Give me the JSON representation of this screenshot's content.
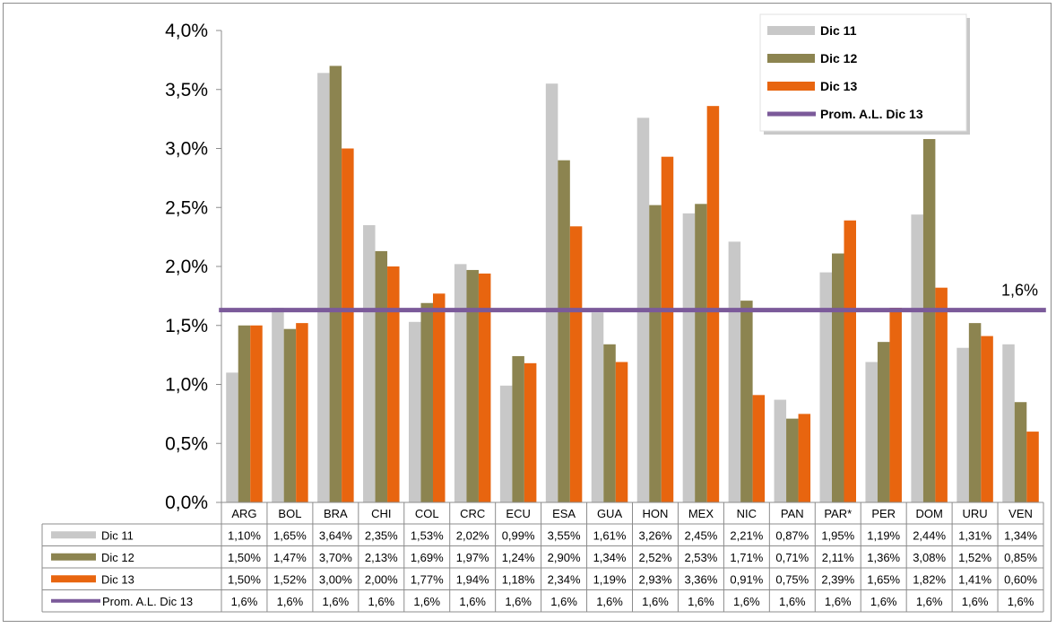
{
  "chart_data": {
    "type": "bar",
    "categories": [
      "ARG",
      "BOL",
      "BRA",
      "CHI",
      "COL",
      "CRC",
      "ECU",
      "ESA",
      "GUA",
      "HON",
      "MEX",
      "NIC",
      "PAN",
      "PAR*",
      "PER",
      "DOM",
      "URU",
      "VEN"
    ],
    "series": [
      {
        "name": "Dic 11",
        "color": "#c8c8c8",
        "values": [
          1.1,
          1.65,
          3.64,
          2.35,
          1.53,
          2.02,
          0.99,
          3.55,
          1.61,
          3.26,
          2.45,
          2.21,
          0.87,
          1.95,
          1.19,
          2.44,
          1.31,
          1.34
        ],
        "labels": [
          "1,10%",
          "1,65%",
          "3,64%",
          "2,35%",
          "1,53%",
          "2,02%",
          "0,99%",
          "3,55%",
          "1,61%",
          "3,26%",
          "2,45%",
          "2,21%",
          "0,87%",
          "1,95%",
          "1,19%",
          "2,44%",
          "1,31%",
          "1,34%"
        ]
      },
      {
        "name": "Dic 12",
        "color": "#8c8450",
        "values": [
          1.5,
          1.47,
          3.7,
          2.13,
          1.69,
          1.97,
          1.24,
          2.9,
          1.34,
          2.52,
          2.53,
          1.71,
          0.71,
          2.11,
          1.36,
          3.08,
          1.52,
          0.85
        ],
        "labels": [
          "1,50%",
          "1,47%",
          "3,70%",
          "2,13%",
          "1,69%",
          "1,97%",
          "1,24%",
          "2,90%",
          "1,34%",
          "2,52%",
          "2,53%",
          "1,71%",
          "0,71%",
          "2,11%",
          "1,36%",
          "3,08%",
          "1,52%",
          "0,85%"
        ]
      },
      {
        "name": "Dic 13",
        "color": "#e8650f",
        "values": [
          1.5,
          1.52,
          3.0,
          2.0,
          1.77,
          1.94,
          1.18,
          2.34,
          1.19,
          2.93,
          3.36,
          0.91,
          0.75,
          2.39,
          1.65,
          1.82,
          1.41,
          0.6
        ],
        "labels": [
          "1,50%",
          "1,52%",
          "3,00%",
          "2,00%",
          "1,77%",
          "1,94%",
          "1,18%",
          "2,34%",
          "1,19%",
          "2,93%",
          "3,36%",
          "0,91%",
          "0,75%",
          "2,39%",
          "1,65%",
          "1,82%",
          "1,41%",
          "0,60%"
        ]
      }
    ],
    "average_line": {
      "name": "Prom. A.L. Dic 13",
      "color": "#7b5a9a",
      "value": 1.63,
      "label": "1,6%",
      "labels": [
        "1,6%",
        "1,6%",
        "1,6%",
        "1,6%",
        "1,6%",
        "1,6%",
        "1,6%",
        "1,6%",
        "1,6%",
        "1,6%",
        "1,6%",
        "1,6%",
        "1,6%",
        "1,6%",
        "1,6%",
        "1,6%",
        "1,6%",
        "1,6%"
      ]
    },
    "ylim": [
      0,
      4.0
    ],
    "yticks": [
      0,
      0.5,
      1.0,
      1.5,
      2.0,
      2.5,
      3.0,
      3.5,
      4.0
    ],
    "ytick_labels": [
      "0,0%",
      "0,5%",
      "1,0%",
      "1,5%",
      "2,0%",
      "2,5%",
      "3,0%",
      "3,5%",
      "4,0%"
    ],
    "legend_position": "top-right",
    "grid": false,
    "data_table": true
  }
}
